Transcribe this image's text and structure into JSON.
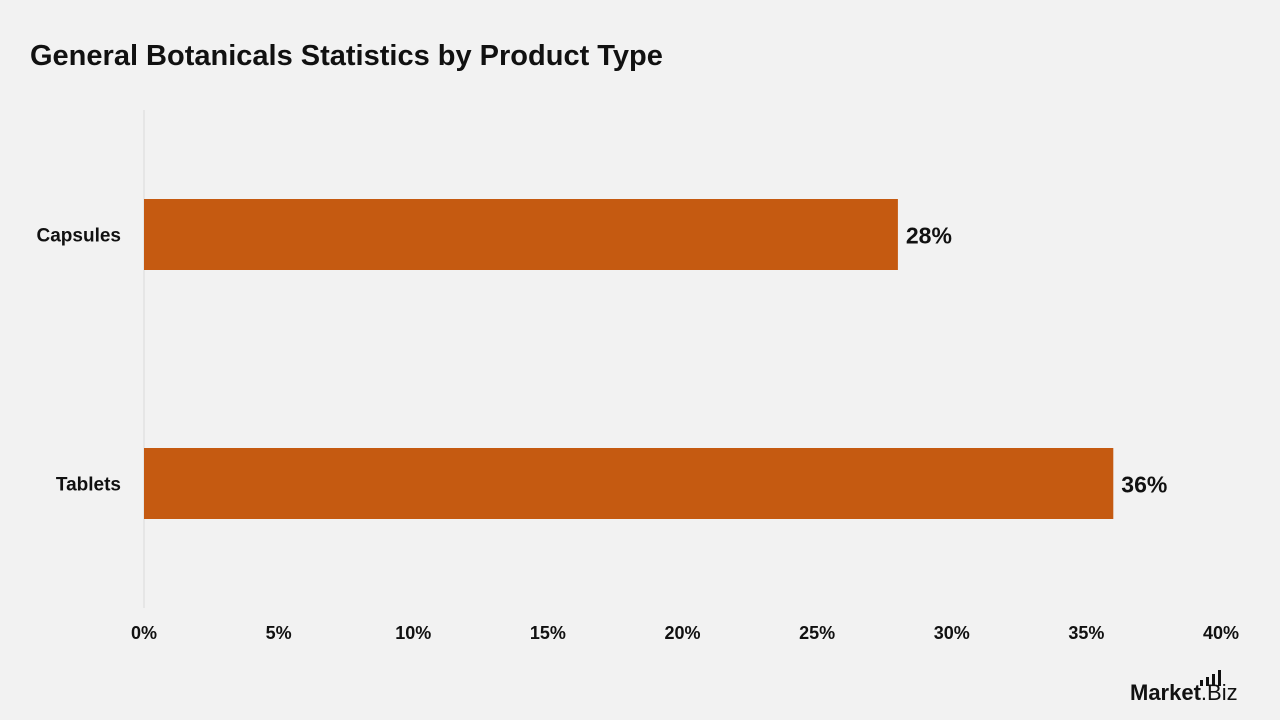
{
  "title": "General Botanicals Statistics by Product Type",
  "logo": {
    "word": "Market",
    "suffix": ".Biz"
  },
  "colors": {
    "bar": "#c55a11",
    "background": "#f2f2f2",
    "text": "#111111",
    "axis": "#d9d9d9"
  },
  "chart_data": {
    "type": "bar",
    "orientation": "horizontal",
    "categories": [
      "Capsules",
      "Tablets"
    ],
    "values": [
      28,
      36
    ],
    "value_labels": [
      "28%",
      "36%"
    ],
    "xlim": [
      0,
      40
    ],
    "x_ticks": [
      "0%",
      "5%",
      "10%",
      "15%",
      "20%",
      "25%",
      "30%",
      "35%",
      "40%"
    ],
    "grid": false
  }
}
